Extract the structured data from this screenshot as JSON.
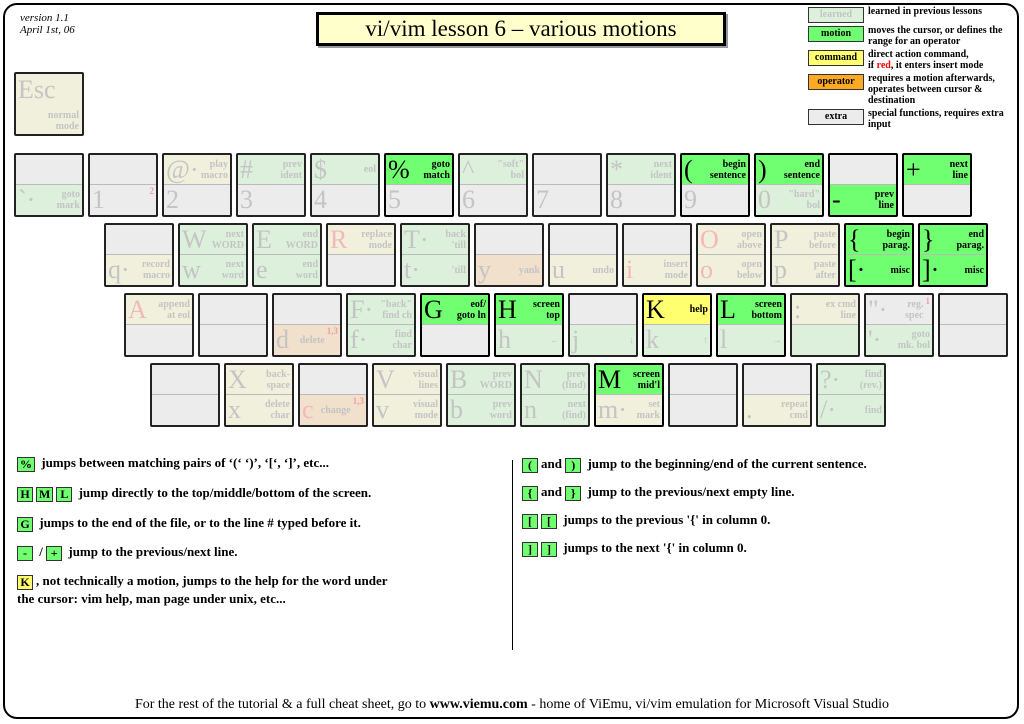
{
  "header": {
    "version": "version 1.1",
    "date": "April 1st, 06",
    "title": "vi/vim lesson 6 – various motions"
  },
  "colors": {
    "motion": "#70ff70",
    "command": "#ffff70",
    "operator": "#ffaa22",
    "learned": "#dcf0dc",
    "extra": "#ececec"
  },
  "legend": [
    {
      "swatch": "learned",
      "desc": "learned in previous lessons"
    },
    {
      "swatch": "motion",
      "desc": "moves the cursor, or defines the range for an operator"
    },
    {
      "swatch": "command",
      "desc_a": "direct action command,",
      "desc_b": "if ",
      "desc_red": "red",
      "desc_c": ", it enters insert mode"
    },
    {
      "swatch": "operator",
      "desc": "requires a motion afterwards, operates between cursor & destination"
    },
    {
      "swatch": "extra",
      "desc": "special functions, requires extra input"
    }
  ],
  "esc": {
    "ch": "Esc",
    "label": "normal\nmode",
    "cat": "l-command"
  },
  "rows": [
    [
      {
        "t": {},
        "b": {
          "ch": "`·",
          "label": "goto\nmark",
          "cat": "l-motion"
        }
      },
      {
        "t": {},
        "b": {
          "ch": "1",
          "sup": "2"
        }
      },
      {
        "t": {
          "ch": "@·",
          "label": "play\nmacro",
          "cat": "l-command"
        },
        "b": {
          "ch": "2"
        }
      },
      {
        "t": {
          "ch": "#",
          "label": "prev\nident",
          "cat": "l-motion"
        },
        "b": {
          "ch": "3"
        }
      },
      {
        "t": {
          "ch": "$",
          "label": "eol",
          "cat": "l-motion"
        },
        "b": {
          "ch": "4"
        }
      },
      {
        "t": {
          "ch": "%",
          "label": "goto\nmatch",
          "cat": "motion"
        },
        "b": {
          "ch": "5"
        }
      },
      {
        "t": {
          "ch": "^",
          "label": "\"soft\"\nbol",
          "cat": "l-motion"
        },
        "b": {
          "ch": "6"
        }
      },
      {
        "t": {},
        "b": {
          "ch": "7"
        }
      },
      {
        "t": {
          "ch": "*",
          "label": "next\nident",
          "cat": "l-motion"
        },
        "b": {
          "ch": "8"
        }
      },
      {
        "t": {
          "ch": "(",
          "label": "begin\nsentence",
          "cat": "motion"
        },
        "b": {
          "ch": "9"
        }
      },
      {
        "t": {
          "ch": ")",
          "label": "end\nsentence",
          "cat": "motion"
        },
        "b": {
          "ch": "0",
          "label": "\"hard\"\nbol",
          "cat": "l-motion"
        }
      },
      {
        "t": {},
        "b": {
          "ch": "-",
          "label": "prev\nline",
          "cat": "motion"
        }
      },
      {
        "t": {
          "ch": "+",
          "label": "next\nline",
          "cat": "motion"
        },
        "b": {}
      }
    ],
    [
      {
        "t": {},
        "b": {
          "ch": "q·",
          "label": "record\nmacro",
          "cat": "l-command"
        }
      },
      {
        "t": {
          "ch": "W",
          "label": "next\nWORD",
          "cat": "l-motion"
        },
        "b": {
          "ch": "w",
          "label": "next\nword",
          "cat": "l-motion"
        }
      },
      {
        "t": {
          "ch": "E",
          "label": "end\nWORD",
          "cat": "l-motion"
        },
        "b": {
          "ch": "e",
          "label": "end\nword",
          "cat": "l-motion"
        }
      },
      {
        "t": {
          "ch": "R",
          "label": "replace\nmode",
          "cat": "l-command",
          "red": true
        },
        "b": {}
      },
      {
        "t": {
          "ch": "T·",
          "label": "back\n'till",
          "cat": "l-motion"
        },
        "b": {
          "ch": "t·",
          "label": "'till",
          "cat": "l-motion"
        }
      },
      {
        "t": {},
        "b": {
          "ch": "y",
          "label": "yank",
          "cat": "l-operator"
        }
      },
      {
        "t": {},
        "b": {
          "ch": "u",
          "label": "undo",
          "cat": "l-command"
        }
      },
      {
        "t": {},
        "b": {
          "ch": "i",
          "label": "insert\nmode",
          "cat": "l-command",
          "red": true
        }
      },
      {
        "t": {
          "ch": "O",
          "label": "open\nabove",
          "cat": "l-command",
          "red": true
        },
        "b": {
          "ch": "o",
          "label": "open\nbelow",
          "cat": "l-command",
          "red": true
        }
      },
      {
        "t": {
          "ch": "P",
          "label": "paste\nbefore",
          "cat": "l-command"
        },
        "b": {
          "ch": "p",
          "label": "paste\nafter",
          "cat": "l-command"
        }
      },
      {
        "t": {
          "ch": "{",
          "label": "begin\nparag.",
          "cat": "motion"
        },
        "b": {
          "ch": "[·",
          "label": "misc",
          "cat": "motion"
        }
      },
      {
        "t": {
          "ch": "}",
          "label": "end\nparag.",
          "cat": "motion"
        },
        "b": {
          "ch": "]·",
          "label": "misc",
          "cat": "motion"
        }
      }
    ],
    [
      {
        "t": {
          "ch": "A",
          "label": "append\nat eol",
          "cat": "l-command",
          "red": true
        },
        "b": {}
      },
      {
        "t": {},
        "b": {}
      },
      {
        "t": {},
        "b": {
          "ch": "d",
          "label": "delete",
          "sup": "1,3",
          "cat": "l-operator"
        }
      },
      {
        "t": {
          "ch": "F·",
          "label": "\"back\"\nfind ch",
          "cat": "l-motion"
        },
        "b": {
          "ch": "f·",
          "label": "find\nchar",
          "cat": "l-motion"
        }
      },
      {
        "t": {
          "ch": "G",
          "label": "eof/\ngoto ln",
          "cat": "motion"
        },
        "b": {}
      },
      {
        "t": {
          "ch": "H",
          "label": "screen\ntop",
          "cat": "motion"
        },
        "b": {
          "ch": "h",
          "label": "←",
          "cat": "l-motion"
        }
      },
      {
        "t": {},
        "b": {
          "ch": "j",
          "label": "↓",
          "cat": "l-motion"
        }
      },
      {
        "t": {
          "ch": "K",
          "label": "help",
          "cat": "command"
        },
        "b": {
          "ch": "k",
          "label": "↑",
          "cat": "l-motion"
        }
      },
      {
        "t": {
          "ch": "L",
          "label": "screen\nbottom",
          "cat": "motion"
        },
        "b": {
          "ch": "l",
          "label": "→",
          "cat": "l-motion"
        }
      },
      {
        "t": {
          "ch": ":",
          "label": "ex cmd\nline",
          "cat": "l-command"
        },
        "b": {
          "cat": "l-motion"
        }
      },
      {
        "t": {
          "ch": "\"·",
          "label": "reg.\nspec",
          "sup": "1",
          "cat": "extra"
        },
        "b": {
          "ch": "'·",
          "label": "goto\nmk. bol",
          "cat": "l-motion"
        }
      },
      {
        "t": {},
        "b": {}
      }
    ],
    [
      {
        "t": {},
        "b": {}
      },
      {
        "t": {
          "ch": "X",
          "label": "back-\nspace",
          "cat": "l-command"
        },
        "b": {
          "ch": "x",
          "label": "delete\nchar",
          "cat": "l-command"
        }
      },
      {
        "t": {},
        "b": {
          "ch": "c",
          "label": "change",
          "sup": "1,3",
          "cat": "l-operator",
          "red": true
        }
      },
      {
        "t": {
          "ch": "V",
          "label": "visual\nlines",
          "cat": "l-command"
        },
        "b": {
          "ch": "v",
          "label": "visual\nmode",
          "cat": "l-command"
        }
      },
      {
        "t": {
          "ch": "B",
          "label": "prev\nWORD",
          "cat": "l-motion"
        },
        "b": {
          "ch": "b",
          "label": "prev\nword",
          "cat": "l-motion"
        }
      },
      {
        "t": {
          "ch": "N",
          "label": "prev\n(find)",
          "cat": "l-motion"
        },
        "b": {
          "ch": "n",
          "label": "next\n(find)",
          "cat": "l-motion"
        }
      },
      {
        "t": {
          "ch": "M",
          "label": "screen\nmid'l",
          "cat": "motion"
        },
        "b": {
          "ch": "m·",
          "label": "set\nmark",
          "cat": "l-command"
        }
      },
      {
        "t": {},
        "b": {}
      },
      {
        "t": {},
        "b": {
          "ch": ".",
          "label": "repeat\ncmd",
          "cat": "l-command"
        }
      },
      {
        "t": {
          "ch": "?·",
          "label": "find\n(rev.)",
          "cat": "l-motion"
        },
        "b": {
          "ch": "/·",
          "label": "find",
          "cat": "l-motion"
        }
      }
    ]
  ],
  "notes_left": [
    {
      "badges": [
        {
          "k": "%",
          "c": "g"
        }
      ],
      "text": " jumps between matching pairs of ‘(‘ ‘)’, ‘[‘, ‘]’,  etc..."
    },
    {
      "badges": [
        {
          "k": "H",
          "c": "g"
        },
        {
          "k": "M",
          "c": "g"
        },
        {
          "k": "L",
          "c": "g"
        }
      ],
      "text": " jump directly to the top/middle/bottom of the screen."
    },
    {
      "badges": [
        {
          "k": "G",
          "c": "g"
        }
      ],
      "text": " jumps to the end of the file, or to the line # typed before it."
    },
    {
      "badges": [
        {
          "k": "-",
          "c": "g"
        }
      ],
      "sep": " / ",
      "badges2": [
        {
          "k": "+",
          "c": "g"
        }
      ],
      "text": " jump to the previous/next line."
    },
    {
      "badges": [
        {
          "k": "K",
          "c": "y"
        }
      ],
      "text": ", not technically a motion, jumps to the help for the word under",
      "text2": "the cursor: vim help, man page under unix, etc..."
    }
  ],
  "notes_right": [
    {
      "badges": [
        {
          "k": "(",
          "c": "g"
        }
      ],
      "sep": "and ",
      "badges2": [
        {
          "k": ")",
          "c": "g"
        }
      ],
      "text": " jump to the beginning/end of the current sentence."
    },
    {
      "badges": [
        {
          "k": "{",
          "c": "g"
        }
      ],
      "sep": "and ",
      "badges2": [
        {
          "k": "}",
          "c": "g"
        }
      ],
      "text": " jump to the previous/next empty line."
    },
    {
      "badges": [
        {
          "k": "[",
          "c": "g"
        },
        {
          "k": "[",
          "c": "g"
        }
      ],
      "text": " jumps to the previous '{' in column 0."
    },
    {
      "badges": [
        {
          "k": "]",
          "c": "g"
        },
        {
          "k": "]",
          "c": "g"
        }
      ],
      "text": " jumps to the next '{' in column 0."
    }
  ],
  "footer": {
    "pre": "For the rest of the tutorial & a full cheat sheet, go to ",
    "link": "www.viemu.com",
    "post": " - home of ViEmu, vi/vim emulation for Microsoft Visual Studio"
  }
}
